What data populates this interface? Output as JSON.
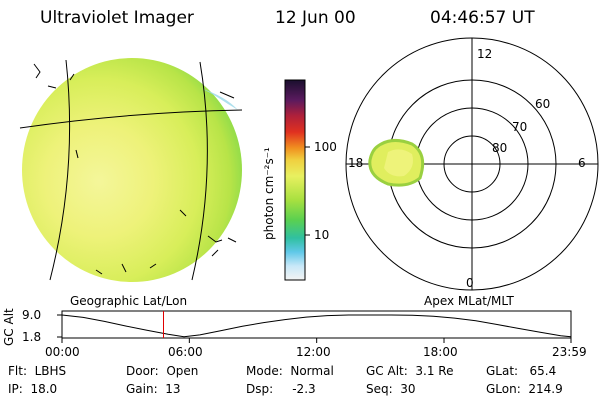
{
  "header": {
    "title": "Ultraviolet Imager",
    "date": "12 Jun 00",
    "time": "04:46:57 UT"
  },
  "colorbar": {
    "unit_label": "photon cm⁻²s⁻¹",
    "ticks": [
      "100",
      "10"
    ],
    "colors": [
      "#1a0f2e",
      "#5a1a5e",
      "#b0203a",
      "#e03020",
      "#f09020",
      "#f0d040",
      "#e8f060",
      "#a8e040",
      "#5ad050",
      "#30c0a0",
      "#60c8e8",
      "#c8e8f8",
      "#f4f4f4"
    ]
  },
  "left_panel": {
    "caption": "Geographic Lat/Lon"
  },
  "polar_plot": {
    "caption": "Apex MLat/MLT",
    "mlt_labels": {
      "top": "12",
      "right": "6",
      "bottom": "0",
      "left": "18"
    },
    "lat_labels": [
      "80",
      "70",
      "60"
    ]
  },
  "altitude_plot": {
    "ylabel": "GC Alt",
    "y_ticks": [
      "9.0",
      "1.8"
    ],
    "x_ticks": [
      "00:00",
      "06:00",
      "12:00",
      "18:00",
      "23:59"
    ]
  },
  "chart_data": {
    "type": "line",
    "title": "",
    "xlabel": "",
    "ylabel": "GC Alt",
    "xlim": [
      "00:00",
      "23:59"
    ],
    "ylim": [
      1.8,
      9.0
    ],
    "series": [
      {
        "x": [
          "00:00",
          "01:00",
          "02:00",
          "03:00",
          "04:00",
          "05:00",
          "05:45",
          "06:30",
          "07:30",
          "08:30",
          "09:30",
          "10:30",
          "11:30",
          "12:30",
          "13:30",
          "14:30",
          "15:30",
          "16:30",
          "17:30",
          "18:30",
          "19:30",
          "20:30",
          "21:30",
          "22:30",
          "23:30",
          "23:59"
        ],
        "values": [
          9.0,
          8.2,
          6.9,
          5.4,
          4.0,
          2.7,
          1.9,
          2.5,
          3.9,
          5.3,
          6.5,
          7.5,
          8.3,
          8.8,
          9.0,
          9.0,
          9.0,
          8.9,
          8.6,
          8.0,
          7.1,
          5.9,
          4.6,
          3.4,
          2.2,
          1.9
        ]
      }
    ],
    "current_time_marker": "04:46:57"
  },
  "footer": {
    "col1": [
      "Flt:  LBHS",
      "IP:  18.0"
    ],
    "col2": [
      "Door:  Open",
      "Gain:  13"
    ],
    "col3": [
      "Mode:  Normal",
      "Dsp:     -2.3"
    ],
    "col4": [
      "GC Alt:  3.1 Re",
      "Seq:  30"
    ],
    "col5": [
      "GLat:   65.4",
      "GLon:  214.9"
    ]
  }
}
